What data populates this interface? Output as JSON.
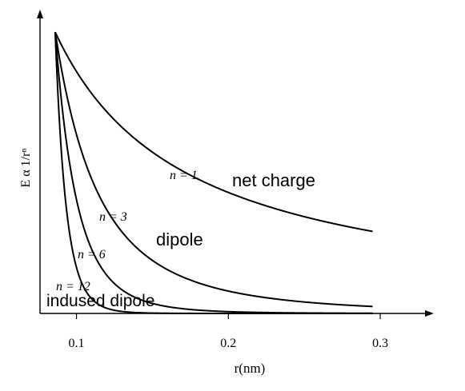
{
  "chart_data": {
    "type": "line",
    "xlabel": "r(nm)",
    "ylabel": "E α 1/rⁿ",
    "xlim": [
      0.076,
      0.33
    ],
    "ylim": [
      0,
      1.08
    ],
    "x_ticks": [
      {
        "value": 0.1,
        "label": "0.1"
      },
      {
        "value": 0.2,
        "label": "0.2"
      },
      {
        "value": 0.3,
        "label": "0.3"
      }
    ],
    "grid": false,
    "series": [
      {
        "name": "n = 1",
        "n": 1,
        "x_start": 0.086,
        "x_end": 0.295,
        "y0": 1.0
      },
      {
        "name": "n = 3",
        "n": 3,
        "x_start": 0.086,
        "x_end": 0.295,
        "y0": 1.0
      },
      {
        "name": "n = 6",
        "n": 6,
        "x_start": 0.086,
        "x_end": 0.295,
        "y0": 1.0
      },
      {
        "name": "n = 12",
        "n": 12,
        "x_start": 0.086,
        "x_end": 0.295,
        "y0": 1.0
      }
    ],
    "annotations": [
      {
        "series": "n = 1",
        "text": "net charge"
      },
      {
        "series": "n = 3",
        "text": "dipole"
      },
      {
        "series": "n = 12",
        "text": "indused dipole"
      }
    ]
  }
}
